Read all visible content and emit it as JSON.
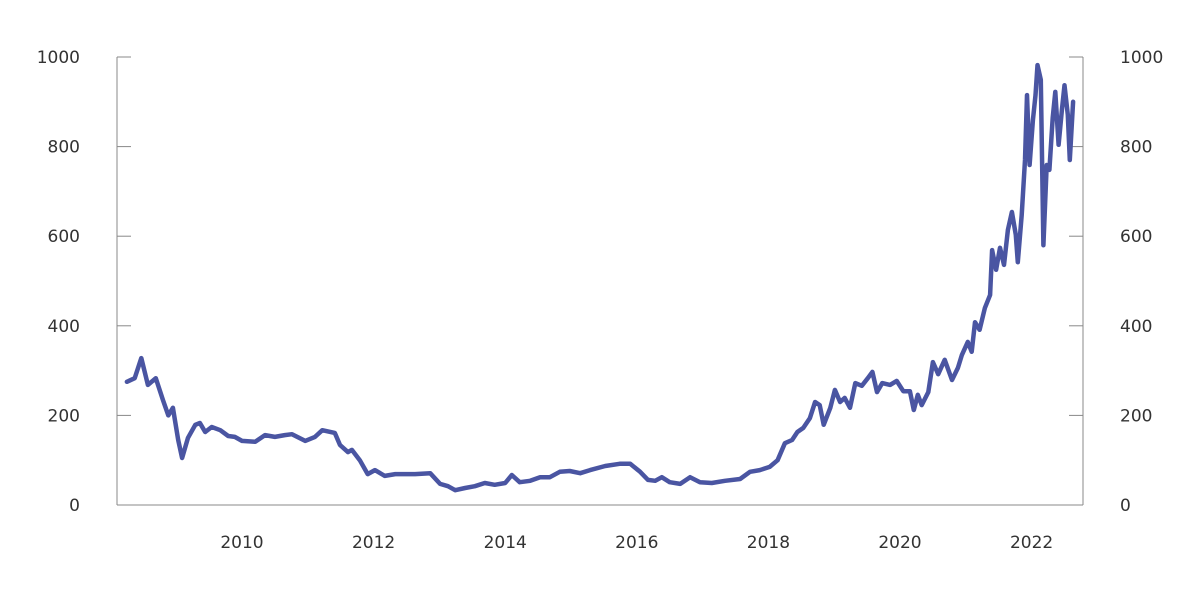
{
  "chart_data": {
    "type": "line",
    "title": "",
    "xlabel": "",
    "ylabel": "",
    "xlim": [
      2008.0,
      2022.9
    ],
    "ylim": [
      0,
      1000
    ],
    "x_ticks": [
      2010,
      2012,
      2014,
      2016,
      2018,
      2020,
      2022
    ],
    "x_tick_labels": [
      "2010",
      "2012",
      "2014",
      "2016",
      "2018",
      "2020",
      "2022"
    ],
    "y_ticks": [
      0,
      200,
      400,
      600,
      800,
      1000
    ],
    "y_tick_labels": [
      "0",
      "200",
      "400",
      "600",
      "800",
      "1000"
    ],
    "right_axis_tick_labels": [
      "0",
      "200",
      "400",
      "600",
      "800",
      "1000"
    ],
    "grid": false,
    "colors": {
      "line": "#4a55a2",
      "axis": "#888888"
    },
    "series": [
      {
        "x": [
          2008.25,
          2008.37,
          2008.47,
          2008.57,
          2008.69,
          2008.8,
          2008.88,
          2008.95,
          2009.03,
          2009.09,
          2009.18,
          2009.29,
          2009.36,
          2009.44,
          2009.54,
          2009.67,
          2009.79,
          2009.89,
          2010.0,
          2010.2,
          2010.35,
          2010.5,
          2010.65,
          2010.76,
          2010.96,
          2011.11,
          2011.22,
          2011.41,
          2011.49,
          2011.61,
          2011.67,
          2011.79,
          2011.91,
          2012.02,
          2012.17,
          2012.33,
          2012.48,
          2012.63,
          2012.86,
          2013.01,
          2013.13,
          2013.24,
          2013.39,
          2013.54,
          2013.69,
          2013.84,
          2014.0,
          2014.1,
          2014.22,
          2014.38,
          2014.53,
          2014.68,
          2014.83,
          2014.98,
          2015.14,
          2015.29,
          2015.52,
          2015.74,
          2015.9,
          2016.05,
          2016.17,
          2016.28,
          2016.38,
          2016.5,
          2016.66,
          2016.81,
          2016.96,
          2017.14,
          2017.34,
          2017.57,
          2017.72,
          2017.87,
          2018.02,
          2018.14,
          2018.25,
          2018.36,
          2018.44,
          2018.53,
          2018.63,
          2018.71,
          2018.78,
          2018.84,
          2018.94,
          2019.01,
          2019.09,
          2019.16,
          2019.24,
          2019.32,
          2019.42,
          2019.51,
          2019.58,
          2019.65,
          2019.73,
          2019.85,
          2019.95,
          2020.05,
          2020.15,
          2020.21,
          2020.27,
          2020.33,
          2020.43,
          2020.5,
          2020.58,
          2020.68,
          2020.79,
          2020.88,
          2020.94,
          2021.03,
          2021.09,
          2021.14,
          2021.21,
          2021.29,
          2021.37,
          2021.4,
          2021.46,
          2021.52,
          2021.58,
          2021.64,
          2021.7,
          2021.76,
          2021.79,
          2021.85,
          2021.9,
          2021.93,
          2021.97,
          2022.02,
          2022.06,
          2022.09,
          2022.14,
          2022.18,
          2022.23,
          2022.27,
          2022.32,
          2022.36,
          2022.41,
          2022.46,
          2022.5,
          2022.55,
          2022.58,
          2022.63
        ],
        "values": [
          275,
          283,
          328,
          268,
          283,
          234,
          200,
          217,
          145,
          105,
          150,
          179,
          183,
          163,
          174,
          167,
          154,
          152,
          143,
          141,
          156,
          152,
          156,
          158,
          143,
          152,
          167,
          161,
          134,
          118,
          123,
          100,
          69,
          78,
          65,
          69,
          69,
          69,
          71,
          47,
          42,
          33,
          38,
          42,
          49,
          45,
          49,
          67,
          51,
          54,
          62,
          62,
          74,
          76,
          71,
          78,
          87,
          92,
          92,
          74,
          56,
          54,
          62,
          51,
          47,
          62,
          51,
          49,
          54,
          58,
          74,
          78,
          85,
          100,
          138,
          145,
          163,
          172,
          194,
          230,
          223,
          179,
          217,
          257,
          230,
          239,
          217,
          272,
          266,
          283,
          297,
          252,
          272,
          268,
          277,
          254,
          254,
          212,
          246,
          223,
          252,
          319,
          292,
          324,
          279,
          306,
          335,
          364,
          342,
          408,
          391,
          440,
          469,
          569,
          525,
          574,
          536,
          614,
          654,
          603,
          542,
          647,
          770,
          915,
          759,
          859,
          915,
          982,
          949,
          580,
          759,
          748,
          864,
          922,
          804,
          882,
          937,
          871,
          770,
          900
        ]
      }
    ]
  }
}
